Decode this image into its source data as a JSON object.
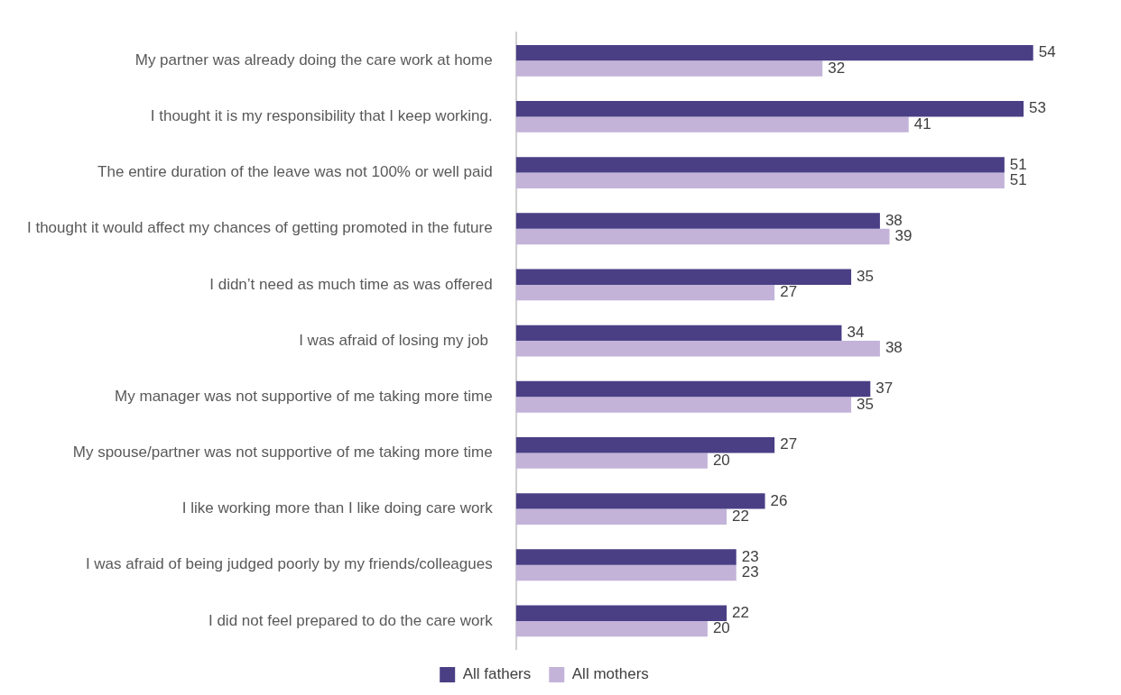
{
  "chart_data": {
    "type": "bar",
    "orientation": "horizontal",
    "categories": [
      "My partner was already doing the care work at home",
      "I thought it is my responsibility that I keep working.",
      "The entire duration of the leave was not 100% or well paid",
      "I thought it would affect my chances of getting promoted in the future",
      "I didn’t need as much time as was offered",
      "I was afraid of losing my job ",
      "My manager was not supportive of me taking more time",
      "My spouse/partner was not supportive of me taking more time",
      "I like working more than I like doing care work",
      "I was afraid of being judged poorly by my friends/colleagues",
      "I did not feel prepared to do the care work"
    ],
    "series": [
      {
        "name": "All fathers",
        "color": "#4a3f85",
        "values": [
          54,
          53,
          51,
          38,
          35,
          34,
          37,
          27,
          26,
          23,
          22
        ]
      },
      {
        "name": "All mothers",
        "color": "#c3b3d8",
        "values": [
          32,
          41,
          51,
          39,
          27,
          38,
          35,
          20,
          22,
          23,
          20
        ]
      }
    ],
    "data_labels": true,
    "grid": false,
    "legend": "bottom"
  }
}
